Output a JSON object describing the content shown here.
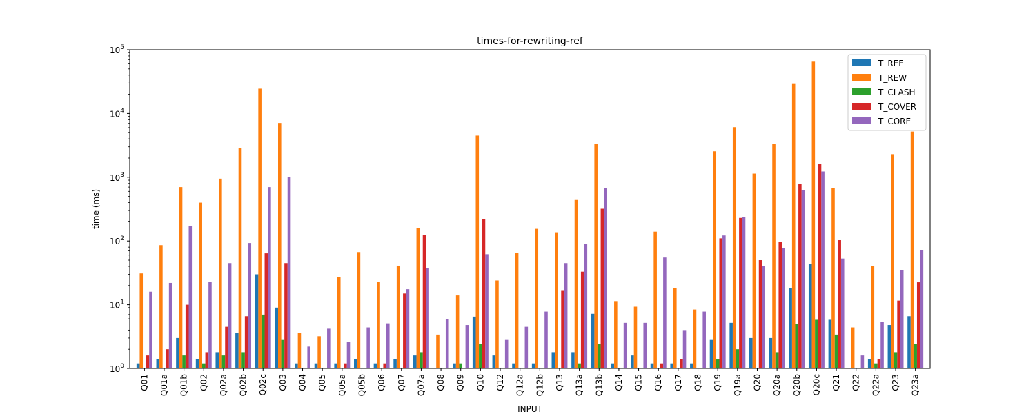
{
  "chart_data": {
    "type": "bar",
    "title": "times-for-rewriting-ref",
    "xlabel": "INPUT",
    "ylabel": "time (ms)",
    "yscale": "log",
    "ylim": [
      1,
      100000
    ],
    "yticks": [
      {
        "value": 1,
        "base": "10",
        "exp": "0"
      },
      {
        "value": 10,
        "base": "10",
        "exp": "1"
      },
      {
        "value": 100,
        "base": "10",
        "exp": "2"
      },
      {
        "value": 1000,
        "base": "10",
        "exp": "3"
      },
      {
        "value": 10000,
        "base": "10",
        "exp": "4"
      },
      {
        "value": 100000,
        "base": "10",
        "exp": "5"
      }
    ],
    "legend_position": "top-right",
    "grid": false,
    "categories": [
      "Q01",
      "Q01a",
      "Q01b",
      "Q02",
      "Q02a",
      "Q02b",
      "Q02c",
      "Q03",
      "Q04",
      "Q05",
      "Q05a",
      "Q05b",
      "Q06",
      "Q07",
      "Q07a",
      "Q08",
      "Q09",
      "Q10",
      "Q12",
      "Q12a",
      "Q12b",
      "Q13",
      "Q13a",
      "Q13b",
      "Q14",
      "Q15",
      "Q16",
      "Q17",
      "Q18",
      "Q19",
      "Q19a",
      "Q20",
      "Q20a",
      "Q20b",
      "Q20c",
      "Q21",
      "Q22",
      "Q22a",
      "Q23",
      "Q23a"
    ],
    "series": [
      {
        "name": "T_REF",
        "color": "#1f77b4",
        "values": [
          1.2,
          1.4,
          3.0,
          1.4,
          1.8,
          3.6,
          30,
          9,
          1.2,
          1.2,
          1.2,
          1.4,
          1.2,
          1.4,
          1.6,
          null,
          1.2,
          6.5,
          1.6,
          1.2,
          1.2,
          1.8,
          1.8,
          7.2,
          1.2,
          1.6,
          1.2,
          1.2,
          1.2,
          2.8,
          5.2,
          3.0,
          3.0,
          18,
          44,
          5.8,
          null,
          1.4,
          4.8,
          6.6
        ]
      },
      {
        "name": "T_REW",
        "color": "#ff7f0e",
        "values": [
          31,
          86,
          700,
          400,
          950,
          2850,
          24500,
          7100,
          3.6,
          3.2,
          27,
          67,
          23,
          41,
          160,
          3.4,
          14,
          4500,
          24,
          65,
          155,
          137,
          440,
          3350,
          11.4,
          9.3,
          140,
          18.4,
          8.4,
          2550,
          6100,
          1140,
          3350,
          29000,
          65000,
          680,
          4.4,
          40,
          2300,
          5200
        ]
      },
      {
        "name": "T_CLASH",
        "color": "#2ca02c",
        "values": [
          null,
          null,
          1.6,
          1.2,
          1.6,
          1.8,
          7,
          2.8,
          null,
          null,
          null,
          null,
          null,
          null,
          1.8,
          null,
          1.2,
          2.4,
          null,
          null,
          null,
          null,
          1.2,
          2.4,
          null,
          null,
          null,
          null,
          null,
          1.4,
          2.0,
          null,
          1.8,
          5.0,
          5.8,
          3.4,
          null,
          1.2,
          1.8,
          2.4
        ]
      },
      {
        "name": "T_COVER",
        "color": "#d62728",
        "values": [
          1.6,
          2.0,
          10,
          1.8,
          4.5,
          6.6,
          64,
          45,
          null,
          null,
          1.2,
          null,
          1.2,
          15,
          125,
          null,
          null,
          220,
          null,
          null,
          null,
          16.5,
          33,
          320,
          null,
          null,
          1.2,
          1.4,
          null,
          110,
          230,
          50,
          97,
          790,
          1600,
          103,
          null,
          1.4,
          11.6,
          22.5
        ]
      },
      {
        "name": "T_CORE",
        "color": "#9467bd",
        "values": [
          16,
          22,
          170,
          23,
          45,
          93,
          700,
          1020,
          2.2,
          4.2,
          2.6,
          4.4,
          5.1,
          17.5,
          38,
          6.0,
          4.8,
          62,
          2.8,
          4.5,
          7.8,
          45,
          90,
          680,
          5.2,
          5.2,
          55,
          4.0,
          7.8,
          122,
          240,
          40,
          77,
          620,
          1230,
          53,
          1.6,
          5.4,
          35,
          72
        ]
      }
    ]
  }
}
